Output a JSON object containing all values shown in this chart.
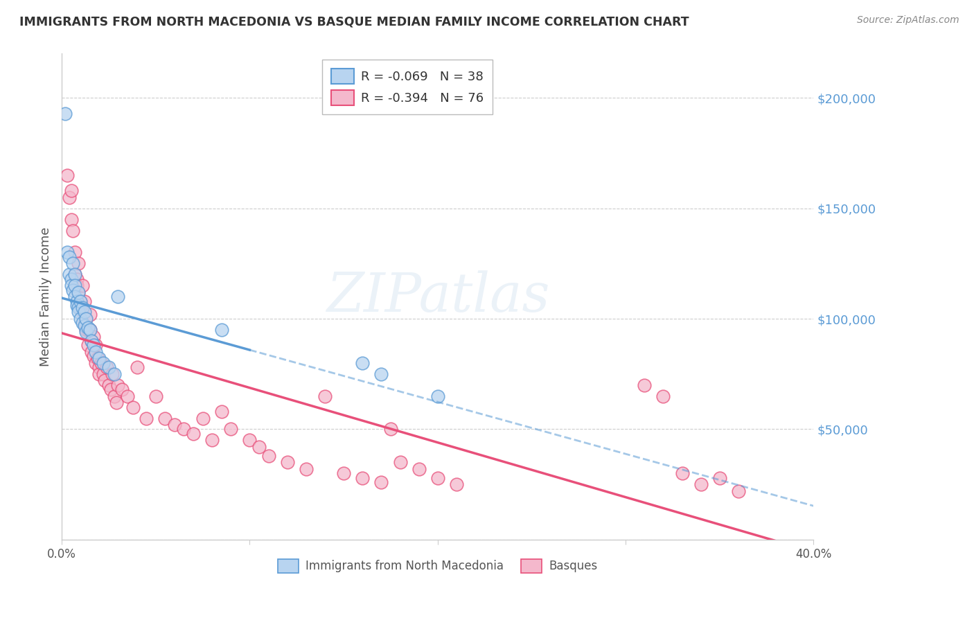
{
  "title": "IMMIGRANTS FROM NORTH MACEDONIA VS BASQUE MEDIAN FAMILY INCOME CORRELATION CHART",
  "source": "Source: ZipAtlas.com",
  "ylabel": "Median Family Income",
  "yticks": [
    0,
    50000,
    100000,
    150000,
    200000
  ],
  "ytick_labels": [
    "",
    "$50,000",
    "$100,000",
    "$150,000",
    "$200,000"
  ],
  "xlim": [
    0.0,
    0.4
  ],
  "ylim": [
    0,
    220000
  ],
  "legend_blue_r": "R = -0.069",
  "legend_blue_n": "N = 38",
  "legend_pink_r": "R = -0.394",
  "legend_pink_n": "N = 76",
  "blue_fill": "#b8d4f0",
  "pink_fill": "#f4b8cc",
  "blue_edge": "#5b9bd5",
  "pink_edge": "#e8507a",
  "blue_line": "#5b9bd5",
  "pink_line": "#e8507a",
  "watermark": "ZIPatlas",
  "blue_scatter_x": [
    0.002,
    0.003,
    0.004,
    0.004,
    0.005,
    0.005,
    0.006,
    0.006,
    0.007,
    0.007,
    0.007,
    0.008,
    0.008,
    0.009,
    0.009,
    0.009,
    0.01,
    0.01,
    0.011,
    0.011,
    0.012,
    0.012,
    0.013,
    0.013,
    0.014,
    0.015,
    0.016,
    0.017,
    0.018,
    0.02,
    0.022,
    0.025,
    0.028,
    0.03,
    0.085,
    0.16,
    0.17,
    0.2
  ],
  "blue_scatter_y": [
    193000,
    130000,
    128000,
    120000,
    118000,
    115000,
    125000,
    113000,
    120000,
    115000,
    110000,
    108000,
    106000,
    112000,
    105000,
    103000,
    108000,
    100000,
    105000,
    98000,
    103000,
    97000,
    100000,
    94000,
    96000,
    95000,
    90000,
    88000,
    85000,
    82000,
    80000,
    78000,
    75000,
    110000,
    95000,
    80000,
    75000,
    65000
  ],
  "pink_scatter_x": [
    0.003,
    0.004,
    0.005,
    0.005,
    0.006,
    0.007,
    0.007,
    0.008,
    0.008,
    0.009,
    0.009,
    0.01,
    0.01,
    0.011,
    0.011,
    0.012,
    0.012,
    0.013,
    0.013,
    0.014,
    0.014,
    0.015,
    0.015,
    0.016,
    0.016,
    0.017,
    0.017,
    0.018,
    0.018,
    0.019,
    0.02,
    0.02,
    0.021,
    0.022,
    0.023,
    0.024,
    0.025,
    0.026,
    0.027,
    0.028,
    0.029,
    0.03,
    0.032,
    0.035,
    0.038,
    0.04,
    0.045,
    0.05,
    0.055,
    0.06,
    0.065,
    0.07,
    0.075,
    0.08,
    0.085,
    0.09,
    0.1,
    0.105,
    0.11,
    0.12,
    0.13,
    0.14,
    0.15,
    0.16,
    0.17,
    0.175,
    0.18,
    0.19,
    0.2,
    0.21,
    0.31,
    0.32,
    0.33,
    0.34,
    0.35,
    0.36
  ],
  "pink_scatter_y": [
    165000,
    155000,
    158000,
    145000,
    140000,
    130000,
    120000,
    118000,
    115000,
    125000,
    112000,
    108000,
    105000,
    115000,
    103000,
    108000,
    98000,
    100000,
    95000,
    95000,
    88000,
    102000,
    95000,
    90000,
    85000,
    92000,
    83000,
    88000,
    80000,
    82000,
    78000,
    75000,
    80000,
    75000,
    72000,
    78000,
    70000,
    68000,
    75000,
    65000,
    62000,
    70000,
    68000,
    65000,
    60000,
    78000,
    55000,
    65000,
    55000,
    52000,
    50000,
    48000,
    55000,
    45000,
    58000,
    50000,
    45000,
    42000,
    38000,
    35000,
    32000,
    65000,
    30000,
    28000,
    26000,
    50000,
    35000,
    32000,
    28000,
    25000,
    70000,
    65000,
    30000,
    25000,
    28000,
    22000
  ]
}
